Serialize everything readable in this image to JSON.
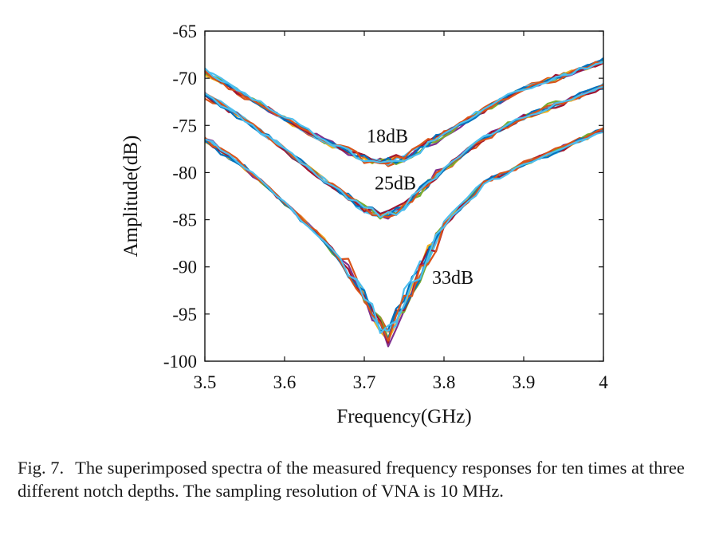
{
  "chart_data": {
    "type": "line",
    "xlabel": "Frequency(GHz)",
    "ylabel": "Amplitude(dB)",
    "xlim": [
      3.5,
      4.0
    ],
    "ylim": [
      -100,
      -65
    ],
    "xticks": [
      "3.5",
      "3.6",
      "3.7",
      "3.8",
      "3.9",
      "4"
    ],
    "xtick_values": [
      3.5,
      3.6,
      3.7,
      3.8,
      3.9,
      4.0
    ],
    "yticks": [
      "-65",
      "-70",
      "-75",
      "-80",
      "-85",
      "-90",
      "-95",
      "-100"
    ],
    "ytick_values": [
      -65,
      -70,
      -75,
      -80,
      -85,
      -90,
      -95,
      -100
    ],
    "grid": false,
    "series_colors": [
      "#0072BD",
      "#D95319",
      "#EDB120",
      "#7E2F8E",
      "#77AC30",
      "#4DBEEE",
      "#A2142F",
      "#0072BD",
      "#D95319",
      "#4DBEEE"
    ],
    "groups": [
      {
        "label": "18dB",
        "runs": 10,
        "x": [
          3.5,
          3.55,
          3.6,
          3.65,
          3.7,
          3.725,
          3.75,
          3.8,
          3.85,
          3.9,
          3.95,
          4.0
        ],
        "y_mean": [
          -69.3,
          -71.8,
          -74.2,
          -76.6,
          -78.5,
          -78.8,
          -78.4,
          -75.9,
          -73.4,
          -71.1,
          -69.7,
          -68.2
        ]
      },
      {
        "label": "25dB",
        "runs": 10,
        "x": [
          3.5,
          3.55,
          3.6,
          3.65,
          3.7,
          3.725,
          3.75,
          3.8,
          3.85,
          3.9,
          3.95,
          4.0
        ],
        "y_mean": [
          -71.8,
          -74.4,
          -77.5,
          -80.8,
          -83.8,
          -84.6,
          -83.6,
          -79.6,
          -76.4,
          -74.1,
          -72.5,
          -70.8
        ]
      },
      {
        "label": "33dB",
        "runs": 10,
        "x": [
          3.5,
          3.55,
          3.6,
          3.65,
          3.68,
          3.7,
          3.72,
          3.73,
          3.75,
          3.8,
          3.85,
          3.9,
          3.95,
          4.0
        ],
        "y_mean": [
          -76.6,
          -79.5,
          -83.2,
          -87.2,
          -90.3,
          -93.2,
          -96.2,
          -97.3,
          -93.6,
          -85.6,
          -81.1,
          -79.1,
          -77.3,
          -75.4
        ]
      }
    ]
  },
  "caption": {
    "label": "Fig. 7.",
    "text": "The superimposed spectra of the measured frequency responses for ten times at three different notch depths. The sampling resolution of VNA is 10 MHz."
  }
}
